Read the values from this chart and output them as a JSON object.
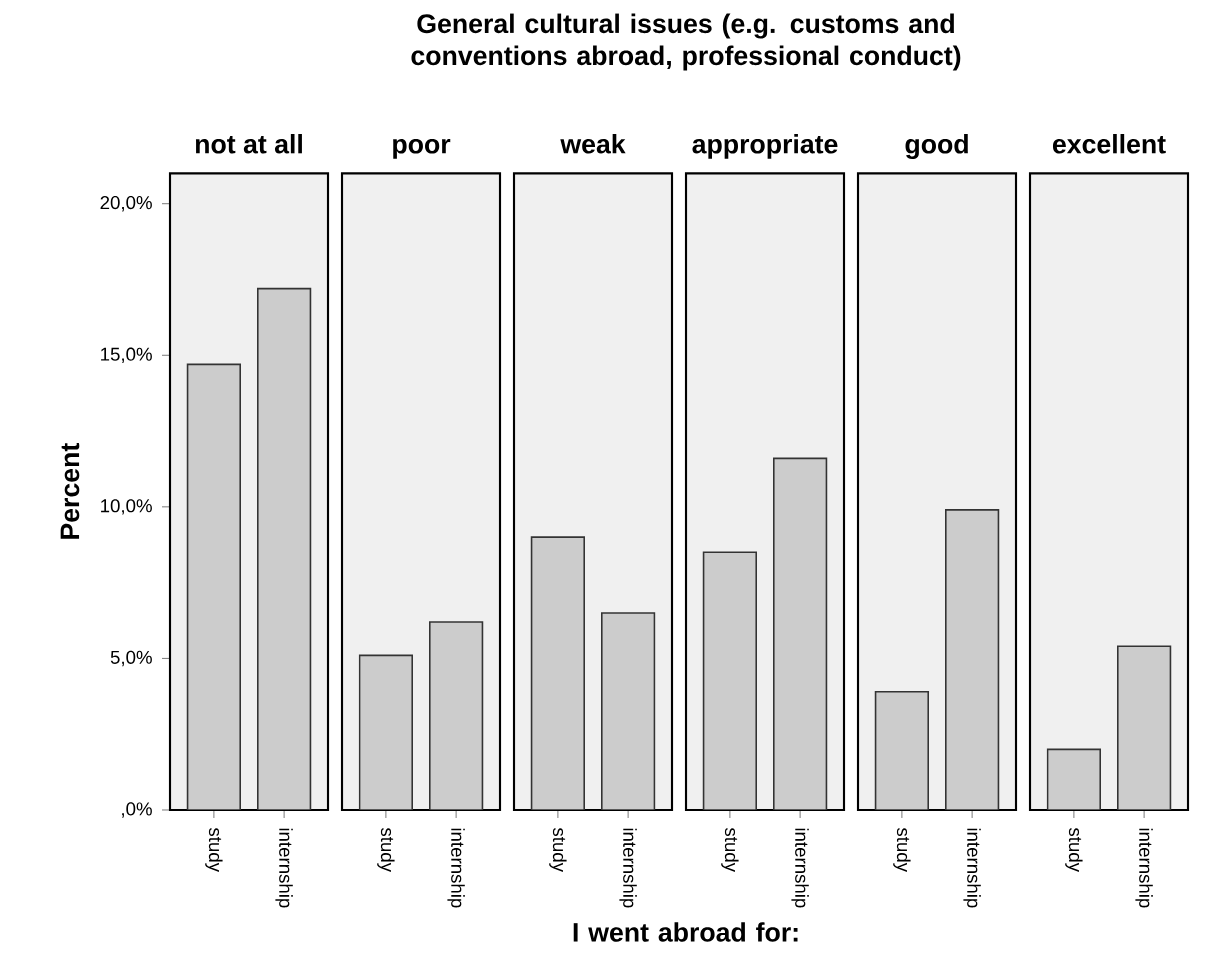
{
  "chart_data": [
    {
      "type": "bar",
      "title": "not at all",
      "ylabel": "Percent",
      "annotations": [
        "General cultural issues (e.g. customs and conventions abroad, professional conduct)",
        "I went abroad for:"
      ],
      "categories": [
        "study",
        "internship"
      ],
      "values": [
        14.7,
        17.2
      ],
      "color": "#cccccc",
      "ylim": [
        0,
        21
      ],
      "yticks": [
        {
          "value": 0,
          "label": ",0%"
        },
        {
          "value": 5,
          "label": "5,0%"
        },
        {
          "value": 10,
          "label": "10,0%"
        },
        {
          "value": 15,
          "label": "15,0%"
        },
        {
          "value": 20,
          "label": "20,0%"
        }
      ]
    },
    {
      "type": "bar",
      "title": "poor",
      "categories": [
        "study",
        "internship"
      ],
      "values": [
        5.1,
        6.2
      ],
      "color": "#cccccc",
      "ylim": [
        0,
        21
      ],
      "tick_labels": "x"
    },
    {
      "type": "bar",
      "title": "weak",
      "categories": [
        "study",
        "internship"
      ],
      "values": [
        9.0,
        6.5
      ],
      "color": "#cccccc",
      "ylim": [
        0,
        21
      ],
      "tick_labels": "x"
    },
    {
      "type": "bar",
      "title": "appropriate",
      "categories": [
        "study",
        "internship"
      ],
      "values": [
        8.5,
        11.6
      ],
      "color": "#cccccc",
      "ylim": [
        0,
        21
      ],
      "tick_labels": "x"
    },
    {
      "type": "bar",
      "title": "good",
      "categories": [
        "study",
        "internship"
      ],
      "values": [
        3.9,
        9.9
      ],
      "color": "#cccccc",
      "ylim": [
        0,
        21
      ],
      "tick_labels": "x"
    },
    {
      "type": "bar",
      "title": "excellent",
      "categories": [
        "study",
        "internship"
      ],
      "values": [
        2.0,
        5.4
      ],
      "color": "#cccccc",
      "ylim": [
        0,
        21
      ],
      "tick_labels": "x"
    }
  ]
}
